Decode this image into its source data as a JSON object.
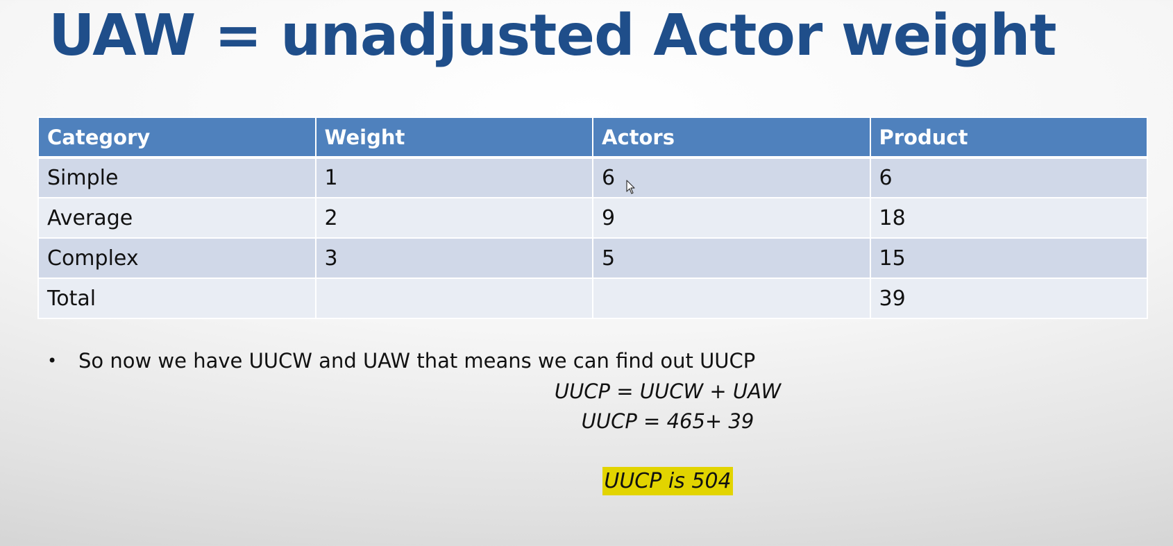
{
  "slide": {
    "title": "UAW = unadjusted Actor weight"
  },
  "table": {
    "headers": [
      "Category",
      "Weight",
      "Actors",
      "Product"
    ],
    "rows": [
      [
        "Simple",
        "1",
        "6",
        "6"
      ],
      [
        "Average",
        "2",
        "9",
        "18"
      ],
      [
        "Complex",
        "3",
        "5",
        "15"
      ],
      [
        "Total",
        "",
        "",
        "39"
      ]
    ]
  },
  "bullet": {
    "symbol": "•",
    "text": "So now we have UUCW and UAW that means we can find out UUCP"
  },
  "formulas": {
    "line1": "UUCP = UUCW + UAW",
    "line2": "UUCP = 465+ 39"
  },
  "result": {
    "text": "UUCP is 504"
  },
  "colors": {
    "title": "#1f4e8a",
    "header_bg": "#4f81bd",
    "row_dark": "#d0d8e8",
    "row_light": "#e9edf4",
    "highlight": "#e2d400"
  },
  "icons": {
    "cursor": "mouse-pointer-icon"
  }
}
